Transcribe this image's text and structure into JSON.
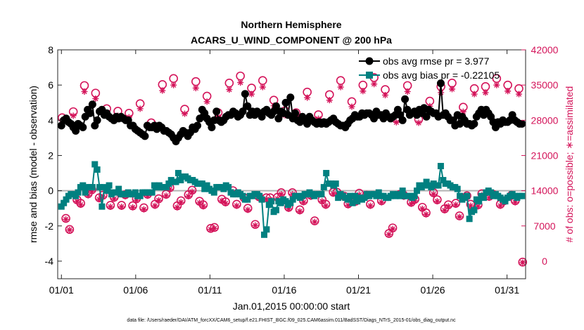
{
  "chart_data": {
    "type": "line",
    "title": "Northern Hemisphere",
    "subtitle": "ACARS_U_WIND_COMPONENT @ 200 hPa",
    "xlabel": "Jan.01,2015 00:00:00 start",
    "ylabel": "rmse and bias (model - observation)",
    "y2label": "# of obs: o=possible; ∗=assimilated",
    "footer": "data file: /Users/raeder/DAI/ATM_forcXX/CAM6_setup/f.e21.FHIST_BGC.f09_025.CAM6assim.011/BadSST/Diags_NTrS_2015-01/obs_diag_output.nc",
    "xlim": [
      0.75,
      32.25
    ],
    "ylim": [
      -5,
      8
    ],
    "y2lim": [
      -3500,
      42000
    ],
    "x_tick_labels": [
      "01/01",
      "01/06",
      "01/11",
      "01/16",
      "01/21",
      "01/26",
      "01/31"
    ],
    "y_tick_labels": [
      "-4",
      "-2",
      "0",
      "2",
      "4",
      "6",
      "8"
    ],
    "y2_tick_labels": [
      "0",
      "7000",
      "14000",
      "21000",
      "28000",
      "35000",
      "42000"
    ],
    "colors": {
      "rmse": "#000000",
      "bias": "#008080",
      "obs": "#d4145a",
      "zero_line": "#b3b3b3"
    },
    "series": [
      {
        "name": "obs avg rmse",
        "legend": "obs avg rmse pr = 3.977",
        "marker": "circle",
        "values": [
          3.7,
          4.0,
          4.1,
          3.9,
          3.8,
          3.6,
          3.4,
          3.8,
          3.7,
          3.6,
          4.2,
          4.6,
          4.4,
          4.9,
          3.7,
          4.0,
          4.5,
          4.6,
          4.3,
          4.4,
          4.2,
          4.1,
          4.0,
          4.2,
          4.1,
          4.2,
          4.1,
          4.0,
          4.0,
          3.7,
          3.7,
          3.5,
          3.4,
          3.3,
          3.2,
          3.1,
          3.7,
          3.6,
          3.6,
          3.7,
          3.5,
          3.7,
          3.6,
          3.4,
          3.4,
          3.3,
          3.2,
          3.0,
          2.8,
          3.0,
          3.2,
          3.4,
          3.3,
          3.1,
          3.3,
          3.6,
          3.5,
          3.7,
          4.1,
          4.6,
          4.4,
          4.1,
          3.9,
          3.6,
          4.0,
          4.5,
          4.0,
          3.9,
          4.0,
          4.2,
          4.3,
          4.3,
          4.5,
          4.4,
          4.2,
          4.3,
          4.5,
          5.5,
          4.8,
          4.3,
          4.5,
          4.3,
          4.5,
          4.4,
          4.2,
          4.5,
          4.6,
          4.4,
          4.3,
          4.5,
          4.8,
          4.1,
          4.5,
          4.4,
          5.0,
          4.3,
          5.3,
          4.1,
          4.4,
          4.0,
          3.9,
          4.2,
          4.0,
          3.8,
          4.2,
          4.0,
          3.9,
          3.8,
          3.9,
          3.8,
          3.9,
          3.8,
          3.9,
          4.0,
          4.1,
          3.9,
          3.8,
          3.7,
          3.7,
          3.6,
          3.8,
          4.0,
          4.1,
          4.3,
          4.2,
          4.2,
          4.4,
          4.3,
          4.4,
          4.4,
          4.3,
          4.1,
          4.5,
          4.3,
          4.3,
          4.1,
          4.4,
          4.2,
          4.1,
          4.2,
          4.3,
          4.6,
          4.3,
          4.0,
          5.2,
          4.6,
          4.3,
          4.4,
          4.5,
          4.3,
          4.6,
          4.4,
          4.7,
          4.2,
          4.6,
          4.5,
          4.4,
          4.4,
          4.2,
          6.1,
          4.3,
          4.4,
          4.2,
          4.0,
          4.0,
          3.7,
          4.3,
          3.8,
          4.2,
          4.0,
          3.8,
          3.8,
          3.7,
          3.8,
          4.2,
          4.4,
          4.6,
          4.3,
          4.6,
          4.4,
          4.2,
          3.9,
          3.6,
          3.9,
          3.8,
          4.0,
          3.9,
          3.9,
          4.0,
          4.3,
          4.0,
          3.9,
          3.8,
          3.8
        ]
      },
      {
        "name": "obs avg bias",
        "legend": "obs avg bias pr = -0.22105",
        "marker": "square",
        "values": [
          -0.9,
          -0.7,
          -0.5,
          -0.3,
          -0.2,
          -0.2,
          -0.3,
          -0.1,
          0.2,
          0.3,
          -0.1,
          0.2,
          0.2,
          0.2,
          1.5,
          1.2,
          0.2,
          -0.9,
          0.2,
          0.0,
          0.3,
          -0.2,
          -0.1,
          -0.1,
          0.1,
          -0.2,
          -0.2,
          -0.2,
          -0.1,
          -0.2,
          -0.2,
          -0.1,
          -0.3,
          -0.3,
          -0.1,
          -0.1,
          -0.1,
          -0.1,
          -0.1,
          0.3,
          0.2,
          0.3,
          0.2,
          0.2,
          0.2,
          0.4,
          0.6,
          0.5,
          0.5,
          1.0,
          0.6,
          0.8,
          0.8,
          0.7,
          0.6,
          0.6,
          0.5,
          0.4,
          0.4,
          0.4,
          0.1,
          0.3,
          0.1,
          0.0,
          -0.1,
          0.2,
          0.2,
          0.2,
          0.1,
          0.3,
          0.2,
          -0.1,
          -0.2,
          -0.2,
          -0.1,
          -0.2,
          -0.3,
          -0.5,
          -0.5,
          -0.3,
          -0.3,
          -0.2,
          -0.2,
          -0.3,
          -0.5,
          -2.5,
          -2.2,
          -0.8,
          -0.6,
          -1.2,
          -1.1,
          -0.6,
          -0.7,
          -0.5,
          -0.6,
          -0.8,
          -0.7,
          -0.5,
          -0.3,
          -0.3,
          -0.4,
          -0.3,
          -0.2,
          -0.2,
          -0.1,
          -0.2,
          -0.3,
          -0.2,
          -0.2,
          -0.2,
          0.2,
          1.0,
          0.4,
          0.4,
          0.3,
          0.4,
          -0.4,
          -0.2,
          -0.3,
          -0.4,
          -0.5,
          -0.3,
          -0.7,
          -0.3,
          -0.6,
          -0.4,
          -0.5,
          -0.4,
          -0.2,
          -0.3,
          -0.2,
          -0.2,
          -0.3,
          -0.1,
          -0.3,
          -0.3,
          -0.4,
          -0.4,
          -0.3,
          -0.2,
          -0.3,
          -0.2,
          -0.3,
          0.0,
          -0.3,
          -0.3,
          -0.3,
          -0.4,
          -0.3,
          0.0,
          0.3,
          0.2,
          0.3,
          0.5,
          0.3,
          0.2,
          0.4,
          0.3,
          0.3,
          1.4,
          0.6,
          0.4,
          0.4,
          0.3,
          0.2,
          0.2,
          0.1,
          -0.3,
          -0.5,
          -0.4,
          -0.3,
          -1.6,
          -1.2,
          -1.1,
          -0.5,
          -0.6,
          -0.3,
          -0.4,
          -0.1,
          0.0,
          -0.1,
          -0.3,
          -0.2,
          -0.3,
          -0.4,
          -0.5,
          -0.6,
          -0.4,
          -0.3,
          -0.2,
          -0.3,
          -0.4,
          -0.3,
          -0.3
        ]
      },
      {
        "name": "# of obs possible",
        "marker": "open-circle",
        "axis": "right",
        "x": [
          1.05,
          1.3,
          1.55,
          1.8,
          2.05,
          2.3,
          2.55,
          2.8,
          3.05,
          3.3,
          3.55,
          3.8,
          4.05,
          4.3,
          4.55,
          4.8,
          5.05,
          5.3,
          5.55,
          5.8,
          6.05,
          6.3,
          6.55,
          6.8,
          7.05,
          7.3,
          7.55,
          7.8,
          8.05,
          8.3,
          8.55,
          8.8,
          9.05,
          9.3,
          9.55,
          9.8,
          10.05,
          10.3,
          10.55,
          10.8,
          11.05,
          11.3,
          11.55,
          11.8,
          12.05,
          12.3,
          12.55,
          12.8,
          13.05,
          13.3,
          13.55,
          13.8,
          14.05,
          14.3,
          14.55,
          14.8,
          15.05,
          15.3,
          15.55,
          15.8,
          16.05,
          16.3,
          16.55,
          16.8,
          17.05,
          17.3,
          17.55,
          17.8,
          18.05,
          18.3,
          18.55,
          18.8,
          19.05,
          19.3,
          19.55,
          19.8,
          20.05,
          20.3,
          20.55,
          20.8,
          21.05,
          21.3,
          21.55,
          21.8,
          22.05,
          22.3,
          22.55,
          22.8,
          23.05,
          23.3,
          23.55,
          23.8,
          24.05,
          24.3,
          24.55,
          24.8,
          25.05,
          25.3,
          25.55,
          25.8,
          26.05,
          26.3,
          26.55,
          26.8,
          27.05,
          27.3,
          27.55,
          27.8,
          28.05,
          28.3,
          28.55,
          28.8,
          29.05,
          29.3,
          29.55,
          29.8,
          30.05,
          30.3,
          30.55,
          30.8,
          31.05,
          31.3,
          31.55,
          31.8,
          32.05
        ],
        "values": [
          28500,
          8500,
          6300,
          29700,
          12200,
          11500,
          34900,
          13400,
          14200,
          33400,
          12600,
          13100,
          30300,
          11100,
          12700,
          29800,
          11100,
          13200,
          29400,
          11000,
          12400,
          31300,
          10600,
          13300,
          27500,
          11300,
          12400,
          35100,
          13300,
          14600,
          36300,
          11000,
          12000,
          30200,
          13200,
          14100,
          35700,
          11900,
          11200,
          32800,
          6500,
          6700,
          29500,
          12300,
          11800,
          35400,
          14000,
          11300,
          36800,
          12600,
          10500,
          34400,
          7300,
          12800,
          35900,
          12600,
          12600,
          32000,
          12700,
          13600,
          29900,
          10700,
          13600,
          29500,
          10200,
          12000,
          33600,
          13100,
          8000,
          29100,
          12200,
          11300,
          33100,
          13700,
          13700,
          35900,
          12900,
          11400,
          31700,
          11900,
          13500,
          35000,
          13100,
          11300,
          36500,
          13200,
          12000,
          34100,
          5500,
          6600,
          28300,
          13300,
          13100,
          34900,
          11700,
          12300,
          28200,
          10700,
          9600,
          31800,
          13600,
          12200,
          34700,
          10400,
          11200,
          35400,
          11500,
          9000,
          30600,
          13000,
          11300,
          34300,
          11200,
          13400,
          34700,
          12900,
          13300,
          36300,
          11300,
          12000,
          35000,
          13100,
          12000,
          34300,
          -200
        ]
      },
      {
        "name": "# of obs assimilated",
        "marker": "asterisk",
        "axis": "right",
        "x": [
          1.05,
          1.3,
          1.55,
          1.8,
          2.05,
          2.3,
          2.55,
          2.8,
          3.05,
          3.3,
          3.55,
          3.8,
          4.05,
          4.3,
          4.55,
          4.8,
          5.05,
          5.3,
          5.55,
          5.8,
          6.05,
          6.3,
          6.55,
          6.8,
          7.05,
          7.3,
          7.55,
          7.8,
          8.05,
          8.3,
          8.55,
          8.8,
          9.05,
          9.3,
          9.55,
          9.8,
          10.05,
          10.3,
          10.55,
          10.8,
          11.05,
          11.3,
          11.55,
          11.8,
          12.05,
          12.3,
          12.55,
          12.8,
          13.05,
          13.3,
          13.55,
          13.8,
          14.05,
          14.3,
          14.55,
          14.8,
          15.05,
          15.3,
          15.55,
          15.8,
          16.05,
          16.3,
          16.55,
          16.8,
          17.05,
          17.3,
          17.55,
          17.8,
          18.05,
          18.3,
          18.55,
          18.8,
          19.05,
          19.3,
          19.55,
          19.8,
          20.05,
          20.3,
          20.55,
          20.8,
          21.05,
          21.3,
          21.55,
          21.8,
          22.05,
          22.3,
          22.55,
          22.8,
          23.05,
          23.3,
          23.55,
          23.8,
          24.05,
          24.3,
          24.55,
          24.8,
          25.05,
          25.3,
          25.55,
          25.8,
          26.05,
          26.3,
          26.55,
          26.8,
          27.05,
          27.3,
          27.55,
          27.8,
          28.05,
          28.3,
          28.55,
          28.8,
          29.05,
          29.3,
          29.55,
          29.8,
          30.05,
          30.3,
          30.55,
          30.8,
          31.05,
          31.3,
          31.55,
          31.8,
          32.05
        ],
        "values": [
          27900,
          8300,
          6200,
          28900,
          11900,
          11200,
          33700,
          13100,
          13900,
          32300,
          12300,
          12800,
          29400,
          10800,
          12400,
          28900,
          10800,
          12900,
          28600,
          10700,
          12100,
          30300,
          10300,
          13000,
          26800,
          11000,
          12100,
          33900,
          13000,
          14300,
          35000,
          10700,
          11700,
          29300,
          12900,
          13800,
          34400,
          11600,
          10900,
          31700,
          6300,
          6500,
          28700,
          12000,
          11500,
          34100,
          13700,
          11000,
          35500,
          12300,
          10200,
          33200,
          7100,
          12500,
          34600,
          12300,
          12300,
          30900,
          12400,
          13300,
          29000,
          10400,
          13300,
          28700,
          9900,
          11700,
          32500,
          12800,
          7800,
          28300,
          11900,
          11000,
          32000,
          13400,
          13400,
          34600,
          12600,
          11100,
          30700,
          11600,
          13200,
          33800,
          12800,
          11000,
          35200,
          12900,
          11700,
          33000,
          5300,
          6400,
          27600,
          13000,
          12800,
          33700,
          11400,
          12000,
          27500,
          10400,
          9300,
          30800,
          13300,
          11900,
          33500,
          10100,
          10900,
          34200,
          11200,
          8800,
          29700,
          12700,
          11000,
          33200,
          10900,
          13100,
          33500,
          12600,
          13000,
          35000,
          11000,
          11700,
          33800,
          12800,
          11700,
          33200,
          -300
        ]
      }
    ]
  }
}
